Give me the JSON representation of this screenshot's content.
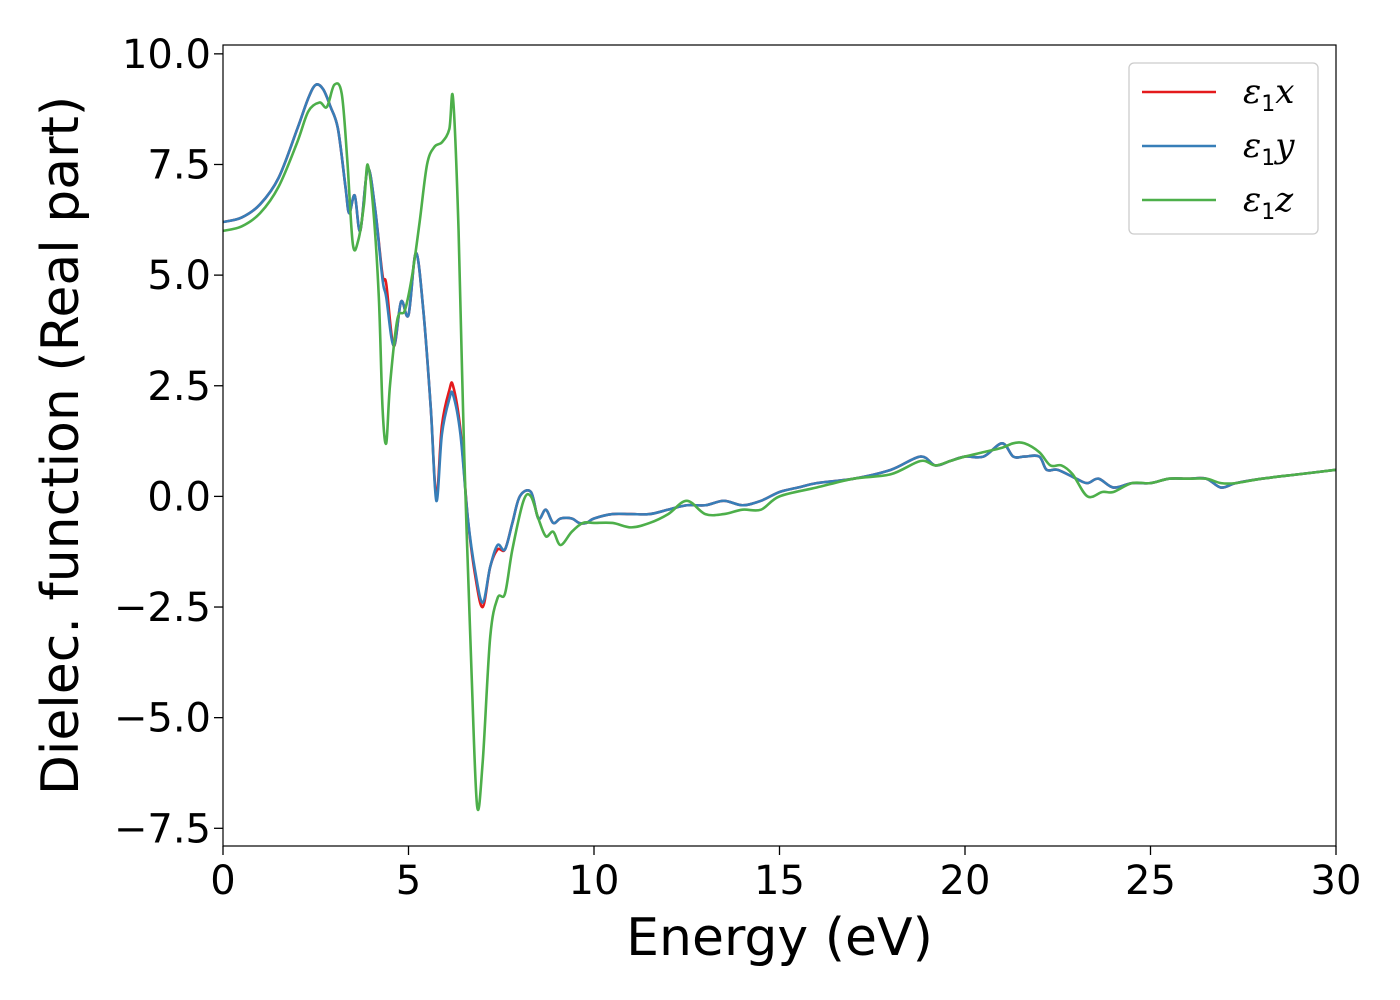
{
  "chart_data": {
    "type": "line",
    "xlabel": "Energy (eV)",
    "ylabel": "Dielec. function (Real part)",
    "xlim": [
      0,
      30
    ],
    "ylim": [
      -7.9,
      10.2
    ],
    "xticks": [
      0,
      5,
      10,
      15,
      20,
      25,
      30
    ],
    "xtick_labels": [
      "0",
      "5",
      "10",
      "15",
      "20",
      "25",
      "30"
    ],
    "yticks": [
      10.0,
      7.5,
      5.0,
      2.5,
      0.0,
      -2.5,
      -5.0,
      -7.5
    ],
    "ytick_labels": [
      "10.0",
      "7.5",
      "5.0",
      "2.5",
      "0.0",
      "−2.5",
      "−5.0",
      "−7.5"
    ],
    "grid": false,
    "legend_position": "top-right",
    "series": [
      {
        "name": "ε1x",
        "legend_base": "ε",
        "legend_sub": "1",
        "legend_var": "x",
        "color": "#e41a1c",
        "x": [
          0,
          0.5,
          1.0,
          1.5,
          2.0,
          2.3,
          2.5,
          2.7,
          2.9,
          3.1,
          3.3,
          3.4,
          3.55,
          3.7,
          3.9,
          4.1,
          4.3,
          4.4,
          4.6,
          4.8,
          5.0,
          5.2,
          5.4,
          5.6,
          5.75,
          5.9,
          6.1,
          6.2,
          6.4,
          6.6,
          6.8,
          7.0,
          7.2,
          7.4,
          7.6,
          7.8,
          8.0,
          8.3,
          8.5,
          8.7,
          8.9,
          9.1,
          9.4,
          9.6,
          9.8,
          10.0,
          10.5,
          11.0,
          11.5,
          12.0,
          12.5,
          13.0,
          13.5,
          14.0,
          14.5,
          15.0,
          15.5,
          16.0,
          17.0,
          18.0,
          18.8,
          19.2,
          19.6,
          20.0,
          20.5,
          21.0,
          21.3,
          21.6,
          22.0,
          22.2,
          22.5,
          23.0,
          23.3,
          23.6,
          24.0,
          24.5,
          25.0,
          25.5,
          26.0,
          26.5,
          26.9,
          27.3,
          28.0,
          29.0,
          30.0
        ],
        "y": [
          6.2,
          6.3,
          6.6,
          7.2,
          8.3,
          9.0,
          9.3,
          9.2,
          8.8,
          8.3,
          7.0,
          6.4,
          6.8,
          6.0,
          7.4,
          6.5,
          5.0,
          4.8,
          3.4,
          4.4,
          4.1,
          5.5,
          4.2,
          2.0,
          0.0,
          1.6,
          2.4,
          2.5,
          1.5,
          -0.5,
          -1.8,
          -2.5,
          -1.6,
          -1.2,
          -1.2,
          -0.6,
          0.0,
          0.1,
          -0.5,
          -0.3,
          -0.6,
          -0.5,
          -0.5,
          -0.6,
          -0.6,
          -0.5,
          -0.4,
          -0.4,
          -0.4,
          -0.3,
          -0.2,
          -0.2,
          -0.1,
          -0.2,
          -0.1,
          0.1,
          0.2,
          0.3,
          0.4,
          0.6,
          0.9,
          0.7,
          0.8,
          0.9,
          0.9,
          1.2,
          0.9,
          0.9,
          0.9,
          0.6,
          0.6,
          0.4,
          0.3,
          0.4,
          0.2,
          0.3,
          0.3,
          0.4,
          0.4,
          0.4,
          0.2,
          0.3,
          0.4,
          0.5,
          0.6
        ]
      },
      {
        "name": "ε1y",
        "legend_base": "ε",
        "legend_sub": "1",
        "legend_var": "y",
        "color": "#377eb8",
        "x": [
          0,
          0.5,
          1.0,
          1.5,
          2.0,
          2.3,
          2.5,
          2.7,
          2.9,
          3.1,
          3.3,
          3.4,
          3.55,
          3.7,
          3.9,
          4.1,
          4.3,
          4.4,
          4.6,
          4.8,
          5.0,
          5.2,
          5.4,
          5.6,
          5.75,
          5.9,
          6.1,
          6.2,
          6.4,
          6.6,
          6.8,
          7.0,
          7.2,
          7.4,
          7.6,
          7.8,
          8.0,
          8.3,
          8.5,
          8.7,
          8.9,
          9.1,
          9.4,
          9.6,
          9.8,
          10.0,
          10.5,
          11.0,
          11.5,
          12.0,
          12.5,
          13.0,
          13.5,
          14.0,
          14.5,
          15.0,
          15.5,
          16.0,
          17.0,
          18.0,
          18.8,
          19.2,
          19.6,
          20.0,
          20.5,
          21.0,
          21.3,
          21.6,
          22.0,
          22.2,
          22.5,
          23.0,
          23.3,
          23.6,
          24.0,
          24.5,
          25.0,
          25.5,
          26.0,
          26.5,
          26.9,
          27.3,
          28.0,
          29.0,
          30.0
        ],
        "y": [
          6.2,
          6.3,
          6.6,
          7.2,
          8.3,
          9.0,
          9.3,
          9.2,
          8.8,
          8.3,
          7.0,
          6.4,
          6.8,
          6.0,
          7.4,
          6.5,
          4.9,
          4.5,
          3.4,
          4.4,
          4.1,
          5.5,
          4.2,
          2.0,
          -0.1,
          1.4,
          2.2,
          2.3,
          1.4,
          -0.5,
          -1.7,
          -2.4,
          -1.6,
          -1.1,
          -1.2,
          -0.6,
          0.0,
          0.1,
          -0.5,
          -0.3,
          -0.6,
          -0.5,
          -0.5,
          -0.6,
          -0.6,
          -0.5,
          -0.4,
          -0.4,
          -0.4,
          -0.3,
          -0.2,
          -0.2,
          -0.1,
          -0.2,
          -0.1,
          0.1,
          0.2,
          0.3,
          0.4,
          0.6,
          0.9,
          0.7,
          0.8,
          0.9,
          0.9,
          1.2,
          0.9,
          0.9,
          0.9,
          0.6,
          0.6,
          0.4,
          0.3,
          0.4,
          0.2,
          0.3,
          0.3,
          0.4,
          0.4,
          0.4,
          0.2,
          0.3,
          0.4,
          0.5,
          0.6
        ]
      },
      {
        "name": "ε1z",
        "legend_base": "ε",
        "legend_sub": "1",
        "legend_var": "z",
        "color": "#4daf4a",
        "x": [
          0,
          0.5,
          1.0,
          1.5,
          2.0,
          2.3,
          2.6,
          2.8,
          3.0,
          3.2,
          3.35,
          3.5,
          3.65,
          3.8,
          3.9,
          4.05,
          4.2,
          4.3,
          4.4,
          4.5,
          4.7,
          4.9,
          5.1,
          5.3,
          5.5,
          5.7,
          5.9,
          6.1,
          6.2,
          6.35,
          6.5,
          6.7,
          6.85,
          7.0,
          7.2,
          7.4,
          7.6,
          7.8,
          8.1,
          8.3,
          8.5,
          8.7,
          8.9,
          9.1,
          9.4,
          9.7,
          10.0,
          10.5,
          11.0,
          11.5,
          12.0,
          12.5,
          13.0,
          13.5,
          14.0,
          14.5,
          15.0,
          16.0,
          17.0,
          18.0,
          18.8,
          19.2,
          19.6,
          20.0,
          20.5,
          21.0,
          21.3,
          21.6,
          22.0,
          22.3,
          22.6,
          22.9,
          23.3,
          23.7,
          24.0,
          24.5,
          25.0,
          25.5,
          26.0,
          26.5,
          26.9,
          27.3,
          28.0,
          29.0,
          30.0
        ],
        "y": [
          6.0,
          6.1,
          6.4,
          7.0,
          8.0,
          8.7,
          8.9,
          8.8,
          9.3,
          9.1,
          7.6,
          5.7,
          5.8,
          6.6,
          7.5,
          6.5,
          4.5,
          2.0,
          1.2,
          2.5,
          4.0,
          4.2,
          5.0,
          6.2,
          7.5,
          7.9,
          8.0,
          8.3,
          9.0,
          6.0,
          1.0,
          -4.0,
          -7.0,
          -6.0,
          -3.2,
          -2.3,
          -2.2,
          -1.2,
          -0.1,
          0.0,
          -0.5,
          -0.9,
          -0.8,
          -1.1,
          -0.8,
          -0.6,
          -0.6,
          -0.6,
          -0.7,
          -0.6,
          -0.4,
          -0.1,
          -0.4,
          -0.4,
          -0.3,
          -0.3,
          0.0,
          0.2,
          0.4,
          0.5,
          0.8,
          0.7,
          0.8,
          0.9,
          1.0,
          1.1,
          1.2,
          1.2,
          1.0,
          0.7,
          0.7,
          0.5,
          0.0,
          0.1,
          0.1,
          0.3,
          0.3,
          0.4,
          0.4,
          0.4,
          0.3,
          0.3,
          0.4,
          0.5,
          0.6
        ]
      }
    ]
  }
}
